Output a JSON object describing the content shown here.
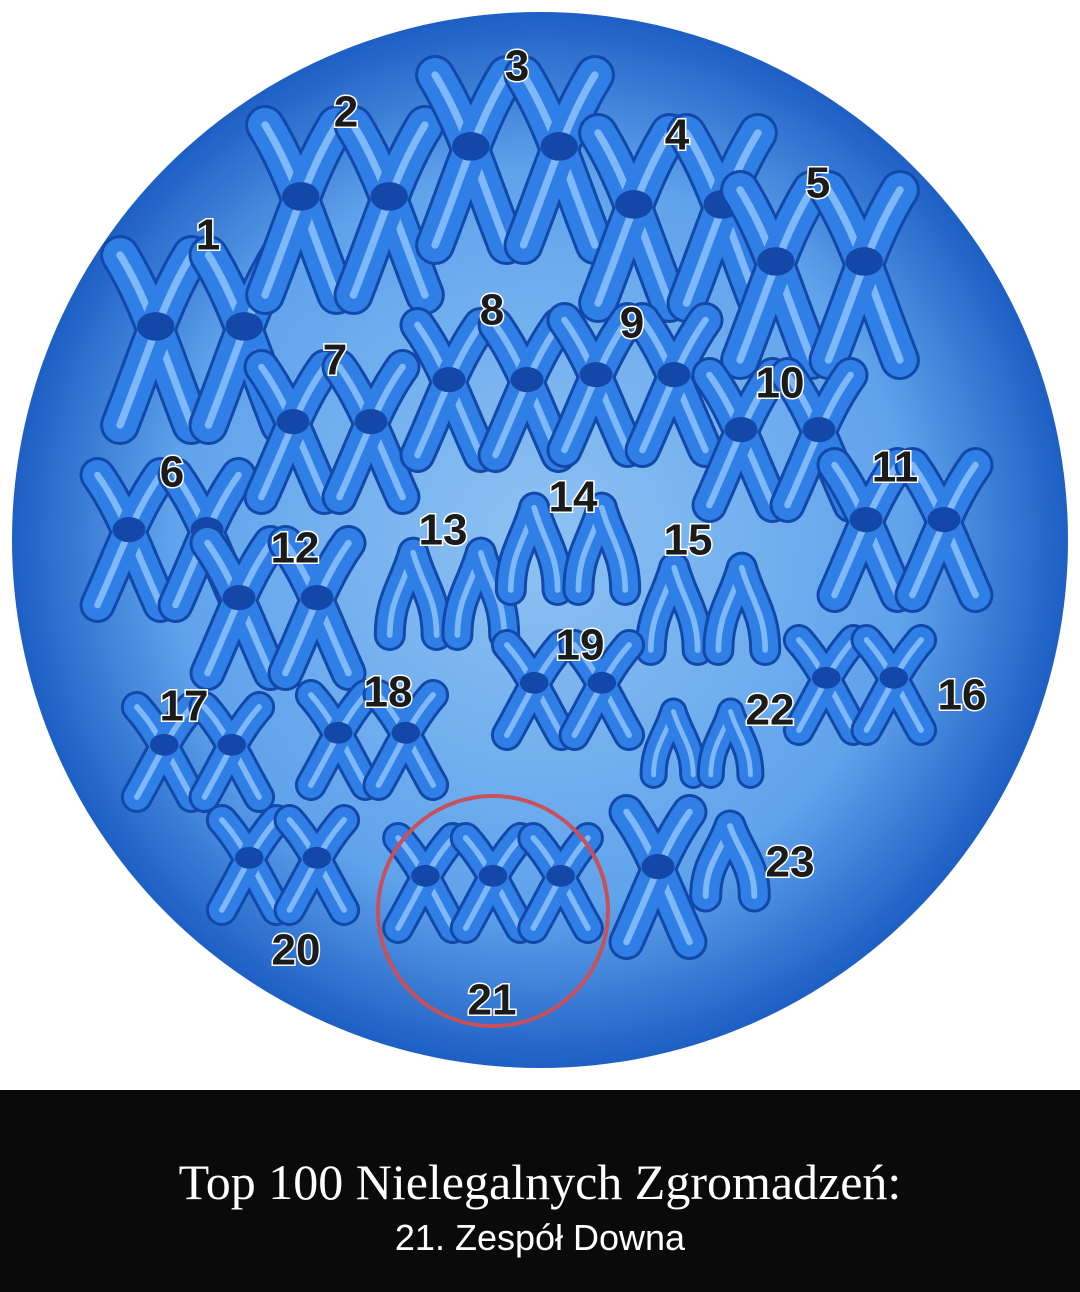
{
  "colors": {
    "cell_center": "#8ec2f2",
    "cell_edge": "#1d5fc4",
    "chromosome": "#2f7fe6",
    "chromosome_dark": "#1348a8",
    "highlight_ring": "#c8505a",
    "caption_bg": "#0a0a0a"
  },
  "chromosomes": [
    {
      "label": "1",
      "copies": 2,
      "size": "large",
      "shape": "x"
    },
    {
      "label": "2",
      "copies": 2,
      "size": "large",
      "shape": "x"
    },
    {
      "label": "3",
      "copies": 2,
      "size": "large",
      "shape": "x"
    },
    {
      "label": "4",
      "copies": 2,
      "size": "large",
      "shape": "x"
    },
    {
      "label": "5",
      "copies": 2,
      "size": "large",
      "shape": "x"
    },
    {
      "label": "6",
      "copies": 2,
      "size": "medium",
      "shape": "x"
    },
    {
      "label": "7",
      "copies": 2,
      "size": "medium",
      "shape": "x"
    },
    {
      "label": "8",
      "copies": 2,
      "size": "medium",
      "shape": "x"
    },
    {
      "label": "9",
      "copies": 2,
      "size": "medium",
      "shape": "x"
    },
    {
      "label": "10",
      "copies": 2,
      "size": "medium",
      "shape": "x"
    },
    {
      "label": "11",
      "copies": 2,
      "size": "medium",
      "shape": "x"
    },
    {
      "label": "12",
      "copies": 2,
      "size": "medium",
      "shape": "x"
    },
    {
      "label": "13",
      "copies": 2,
      "size": "small",
      "shape": "acrocentric"
    },
    {
      "label": "14",
      "copies": 2,
      "size": "small",
      "shape": "acrocentric"
    },
    {
      "label": "15",
      "copies": 2,
      "size": "small",
      "shape": "acrocentric"
    },
    {
      "label": "16",
      "copies": 2,
      "size": "small",
      "shape": "x"
    },
    {
      "label": "17",
      "copies": 2,
      "size": "small",
      "shape": "x"
    },
    {
      "label": "18",
      "copies": 2,
      "size": "small",
      "shape": "x"
    },
    {
      "label": "19",
      "copies": 2,
      "size": "small",
      "shape": "x"
    },
    {
      "label": "20",
      "copies": 2,
      "size": "small",
      "shape": "x"
    },
    {
      "label": "21",
      "copies": 3,
      "size": "small",
      "shape": "x",
      "highlighted": true
    },
    {
      "label": "22",
      "copies": 2,
      "size": "tiny",
      "shape": "acrocentric"
    },
    {
      "label": "23",
      "copies": 2,
      "size": "medium",
      "shape": "sex"
    }
  ],
  "caption": {
    "title": "Top 100 Nielegalnych Zgromadzeń:",
    "subtitle": "21. Zespół Downa"
  }
}
